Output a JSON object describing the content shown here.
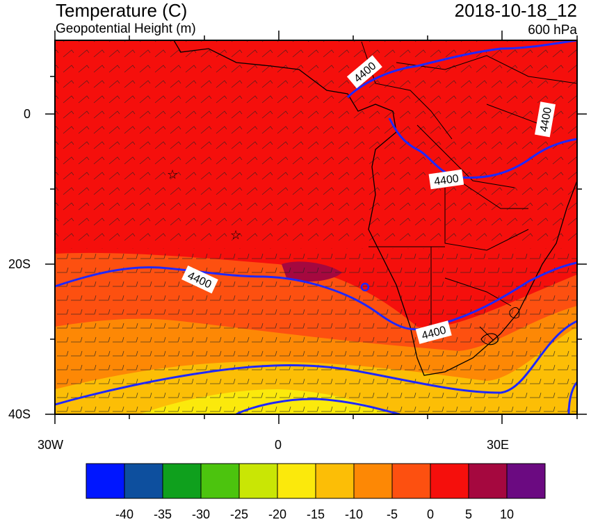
{
  "header": {
    "title": "Temperature (C)",
    "subtitle": "Geopotential Height (m)",
    "datetime": "2018-10-18_12",
    "level": "600 hPa"
  },
  "axes": {
    "lat_labels": [
      "0",
      "20S",
      "40S"
    ],
    "lon_labels": [
      "30W",
      "0",
      "30E"
    ]
  },
  "contours": {
    "label": "4400",
    "color": "#1f28ff"
  },
  "colorbar": {
    "colors": [
      "#0016ff",
      "#0d4f9e",
      "#0fa01d",
      "#4cc40e",
      "#c9e605",
      "#fbe90c",
      "#fcbe06",
      "#fd8805",
      "#fd5010",
      "#f50f0c",
      "#a5083f",
      "#6b0a81"
    ],
    "labels": [
      "-40",
      "-35",
      "-30",
      "-25",
      "-20",
      "-15",
      "-10",
      "-5",
      "0",
      "5",
      "10"
    ]
  }
}
